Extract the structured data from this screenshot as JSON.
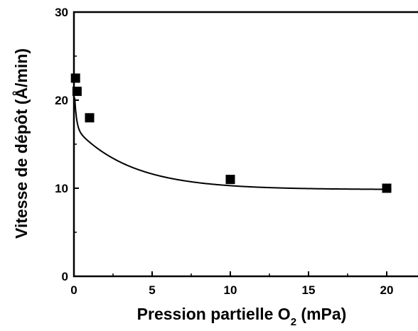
{
  "chart_data": {
    "type": "scatter",
    "title": "",
    "xlabel": "Pression partielle O",
    "xlabel_subscript": "2",
    "xlabel_suffix": " (mPa)",
    "ylabel": "Vitesse de dépôt (Å/min)",
    "xlim": [
      0,
      22
    ],
    "ylim": [
      0,
      30
    ],
    "xticks": [
      0,
      5,
      10,
      15,
      20
    ],
    "yticks": [
      0,
      10,
      20,
      30
    ],
    "xtick_labels": [
      "0",
      "5",
      "10",
      "15",
      "20"
    ],
    "ytick_labels": [
      "0",
      "10",
      "20",
      "30"
    ],
    "grid": false,
    "marker": "square",
    "fit_curve": true,
    "series": [
      {
        "x": [
          0.1,
          0.2,
          1,
          10,
          20
        ],
        "y": [
          22.5,
          21,
          18,
          11,
          10
        ]
      }
    ]
  }
}
